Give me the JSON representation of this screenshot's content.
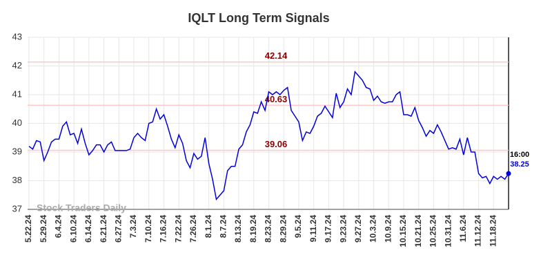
{
  "chart_data": {
    "type": "line",
    "title": "IQLT Long Term Signals",
    "categories": [
      "5.22.24",
      null,
      null,
      null,
      "5.29.24",
      null,
      null,
      null,
      "6.4.24",
      null,
      null,
      null,
      "6.10.24",
      null,
      null,
      null,
      "6.14.24",
      null,
      null,
      null,
      "6.21.24",
      null,
      null,
      null,
      "6.27.24",
      null,
      null,
      null,
      "7.3.24",
      null,
      null,
      null,
      "7.10.24",
      null,
      null,
      null,
      "7.16.24",
      null,
      null,
      null,
      "7.22.24",
      null,
      null,
      null,
      "7.26.24",
      null,
      null,
      null,
      "8.1.24",
      null,
      null,
      null,
      "8.7.24",
      null,
      null,
      null,
      "8.13.24",
      null,
      null,
      null,
      "8.19.24",
      null,
      null,
      null,
      "8.23.24",
      null,
      null,
      null,
      "8.29.24",
      null,
      null,
      null,
      "9.5.24",
      null,
      null,
      null,
      "9.11.24",
      null,
      null,
      null,
      "9.17.24",
      null,
      null,
      null,
      "9.23.24",
      null,
      null,
      null,
      "9.27.24",
      null,
      null,
      null,
      "10.3.24",
      null,
      null,
      null,
      "10.9.24",
      null,
      null,
      null,
      "10.15.24",
      null,
      null,
      null,
      "10.21.24",
      null,
      null,
      null,
      "10.25.24",
      null,
      null,
      null,
      "10.31.24",
      null,
      null,
      null,
      "11.6.24",
      null,
      null,
      null,
      "11.12.24",
      null,
      null,
      null,
      "11.18.24",
      null,
      null,
      null,
      null
    ],
    "values": [
      39.2,
      39.1,
      39.4,
      39.35,
      38.7,
      39.0,
      39.35,
      39.45,
      39.45,
      39.9,
      40.05,
      39.6,
      39.65,
      39.3,
      39.8,
      39.3,
      38.9,
      39.05,
      39.25,
      39.25,
      39.0,
      39.25,
      39.35,
      39.05,
      39.05,
      39.05,
      39.05,
      39.1,
      39.5,
      39.65,
      39.5,
      39.4,
      40.0,
      40.05,
      40.5,
      40.15,
      40.3,
      39.9,
      39.45,
      39.15,
      39.6,
      39.3,
      38.7,
      38.45,
      38.95,
      38.75,
      38.85,
      39.5,
      38.6,
      38.05,
      37.35,
      37.5,
      37.65,
      38.35,
      38.5,
      38.5,
      39.1,
      39.25,
      39.7,
      39.95,
      40.4,
      40.35,
      40.75,
      40.45,
      41.1,
      41.0,
      41.1,
      41.0,
      41.15,
      41.25,
      40.45,
      40.25,
      40.05,
      39.4,
      39.7,
      39.65,
      39.9,
      40.25,
      40.35,
      40.6,
      40.4,
      40.2,
      41.05,
      40.55,
      40.75,
      41.2,
      41.0,
      41.8,
      41.65,
      41.5,
      41.25,
      41.2,
      40.8,
      40.95,
      40.75,
      40.7,
      40.75,
      40.75,
      41.0,
      41.1,
      40.3,
      40.3,
      40.25,
      40.55,
      40.1,
      39.85,
      39.55,
      39.75,
      39.65,
      39.95,
      39.7,
      39.4,
      39.1,
      39.15,
      39.1,
      39.45,
      38.9,
      39.5,
      39.0,
      39.0,
      38.25,
      38.1,
      38.15,
      37.9,
      38.15,
      38.05,
      38.15,
      38.05,
      38.25
    ],
    "color": "#0000dd",
    "ylim": [
      37,
      43
    ],
    "yticks": [
      37,
      38,
      39,
      40,
      41,
      42,
      43
    ],
    "grid": true,
    "reference_lines": [
      42.14,
      40.63,
      39.06
    ],
    "reference_color": "#ffc8c8",
    "reference_label_color": "#8b0000",
    "last_label": "16:00",
    "watermark": "Stock Traders Daily"
  }
}
